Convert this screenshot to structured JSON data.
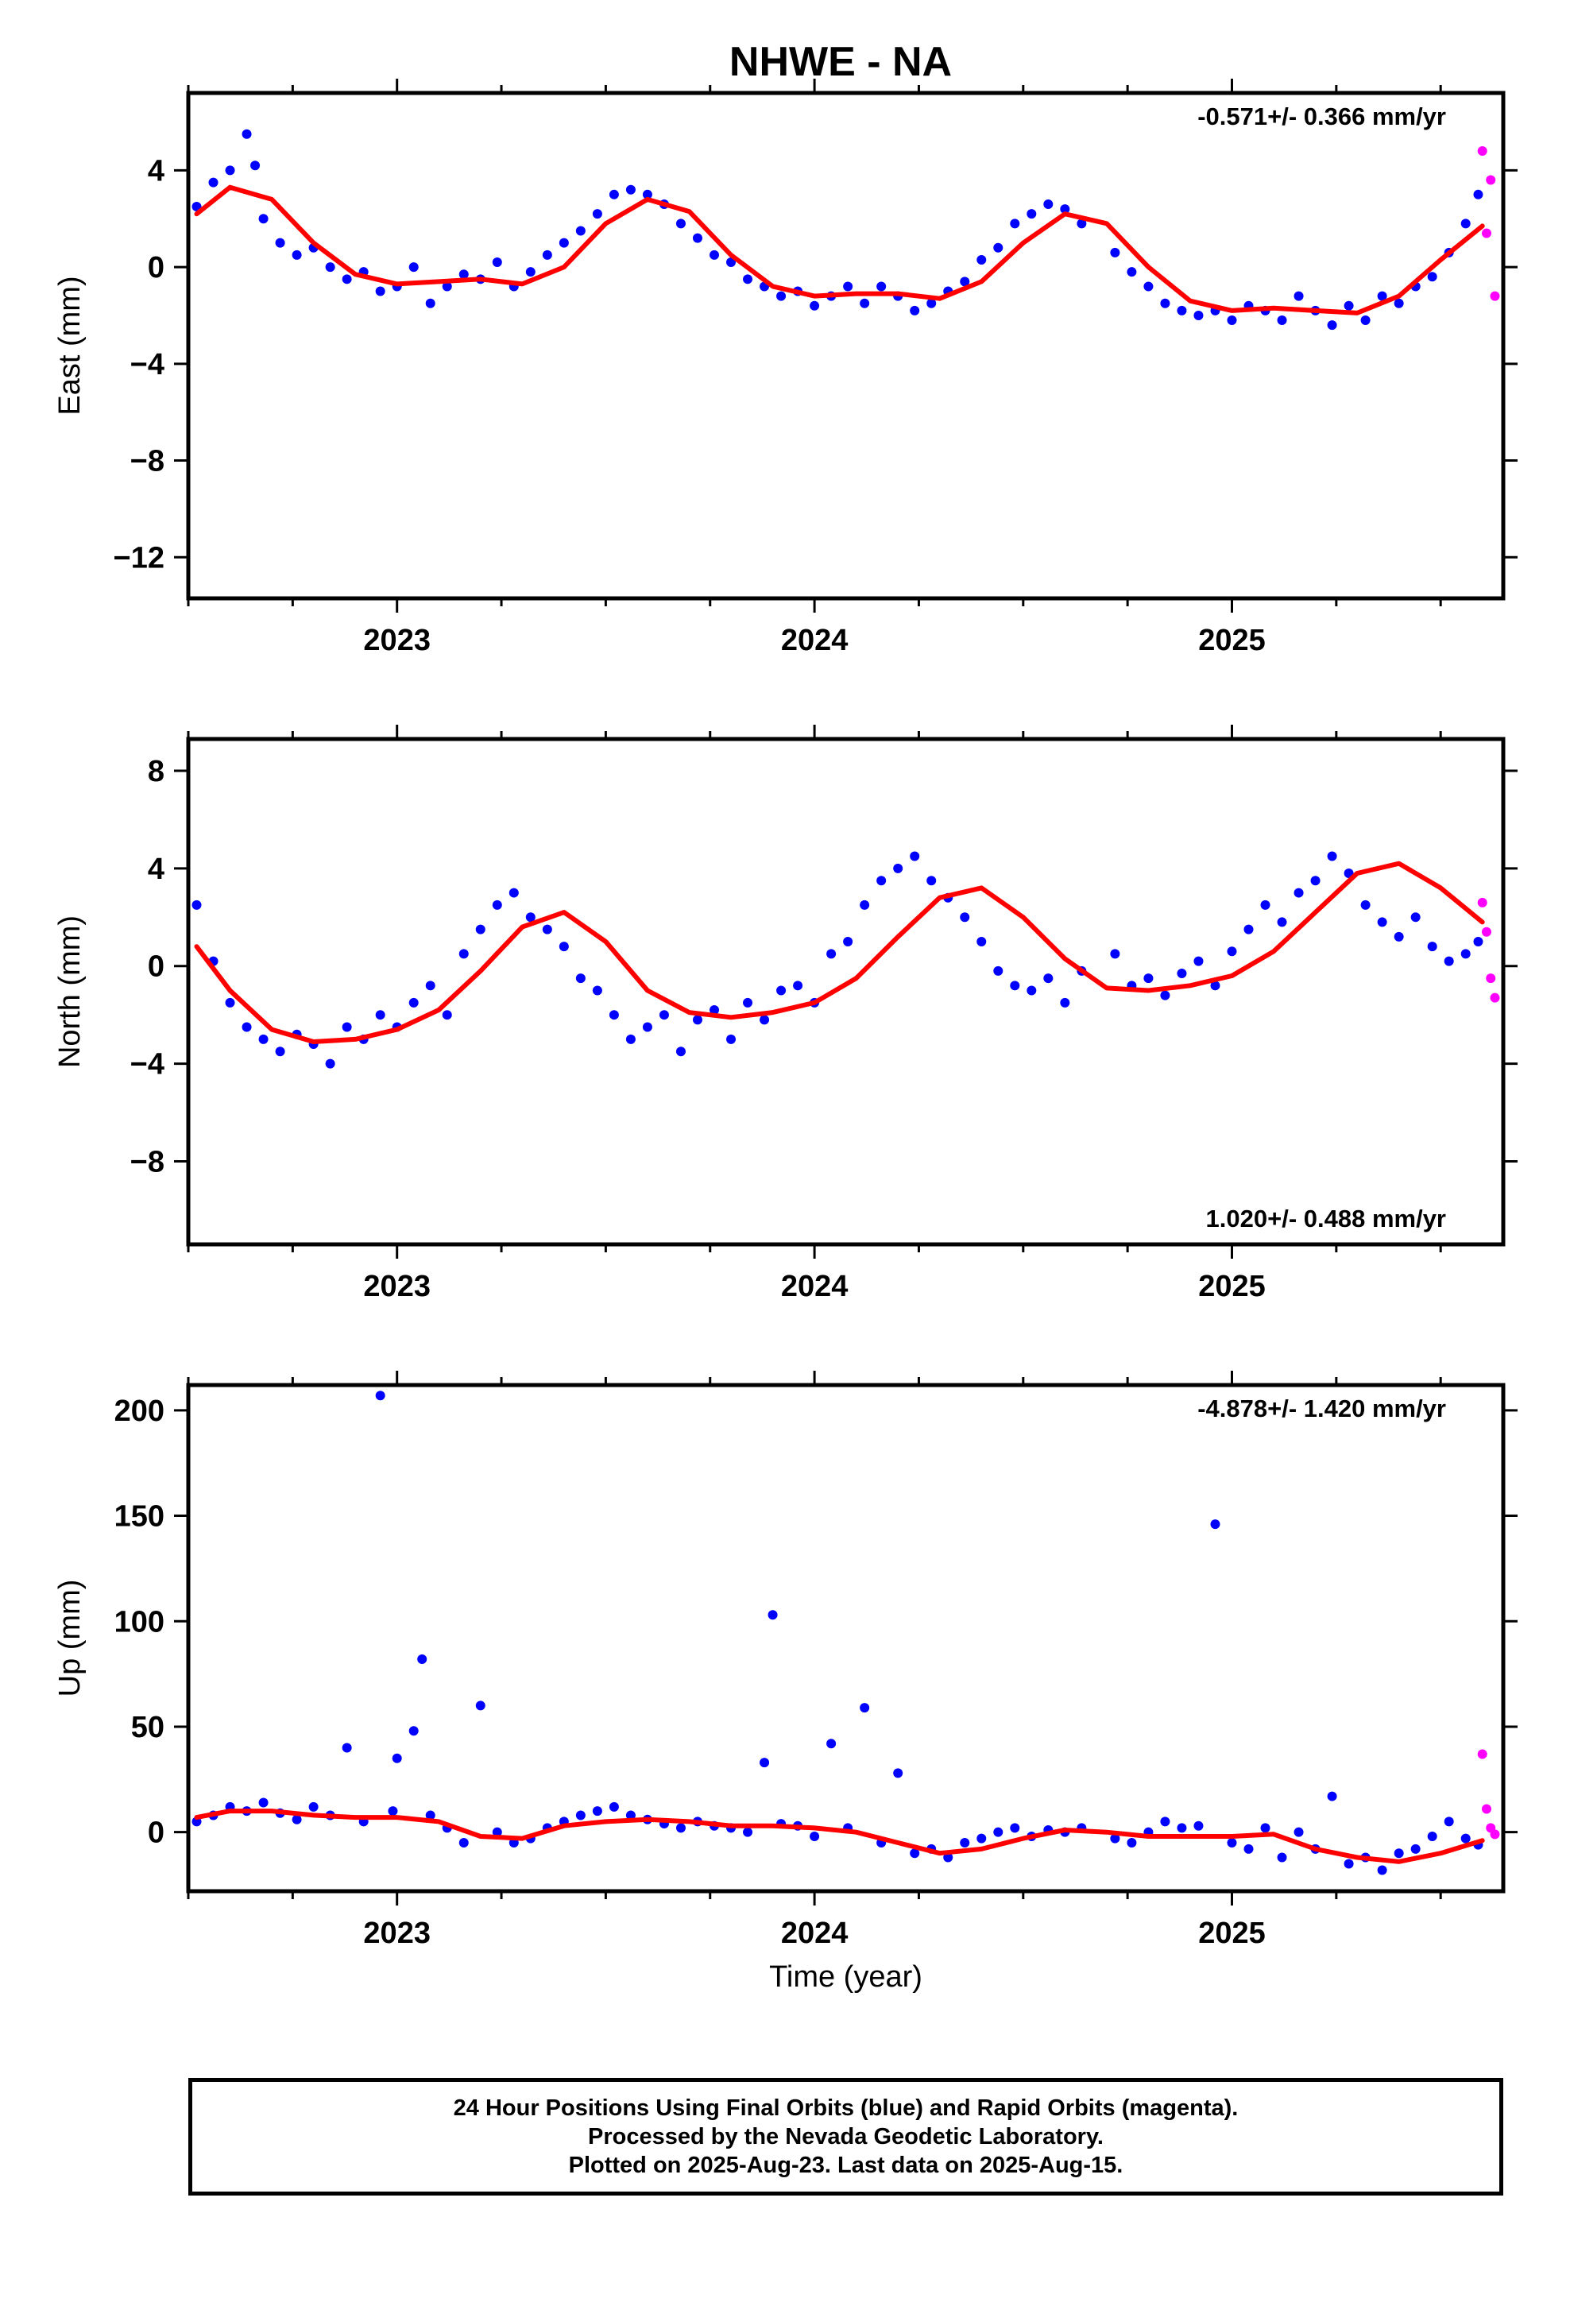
{
  "title": "NHWE - NA",
  "footer": {
    "line1": "24 Hour Positions Using Final Orbits (blue) and Rapid Orbits (magenta).",
    "line2": "Processed by the Nevada Geodetic Laboratory.",
    "line3": "Plotted on 2025-Aug-23. Last data on 2025-Aug-15."
  },
  "colors": {
    "final": "#0000ff",
    "rapid": "#ff00ff",
    "fit": "#ff0000",
    "axis": "#000000"
  },
  "chart_data": [
    {
      "type": "scatter",
      "title": "NHWE - NA",
      "xlabel": "",
      "ylabel": "East (mm)",
      "rate_label": "-0.571+/- 0.366 mm/yr",
      "rate_position": "top-right",
      "xlim": [
        2022.5,
        2025.65
      ],
      "ylim": [
        -13.7,
        7.2
      ],
      "x_ticks": [
        2023,
        2024,
        2025
      ],
      "y_ticks": [
        4,
        0,
        -4,
        -8,
        -12
      ],
      "grid": false,
      "series": [
        {
          "role": "final",
          "x": [
            2022.52,
            2022.56,
            2022.6,
            2022.64,
            2022.66,
            2022.68,
            2022.72,
            2022.76,
            2022.8,
            2022.84,
            2022.88,
            2022.92,
            2022.96,
            2023.0,
            2023.04,
            2023.08,
            2023.12,
            2023.16,
            2023.2,
            2023.24,
            2023.28,
            2023.32,
            2023.36,
            2023.4,
            2023.44,
            2023.48,
            2023.52,
            2023.56,
            2023.6,
            2023.64,
            2023.68,
            2023.72,
            2023.76,
            2023.8,
            2023.84,
            2023.88,
            2023.92,
            2023.96,
            2024.0,
            2024.04,
            2024.08,
            2024.12,
            2024.16,
            2024.2,
            2024.24,
            2024.28,
            2024.32,
            2024.36,
            2024.4,
            2024.44,
            2024.48,
            2024.52,
            2024.56,
            2024.6,
            2024.64,
            2024.72,
            2024.76,
            2024.8,
            2024.84,
            2024.88,
            2024.92,
            2024.96,
            2025.0,
            2025.04,
            2025.08,
            2025.12,
            2025.16,
            2025.2,
            2025.24,
            2025.28,
            2025.32,
            2025.36,
            2025.4,
            2025.44,
            2025.48,
            2025.52,
            2025.56,
            2025.59
          ],
          "y": [
            2.5,
            3.5,
            4.0,
            5.5,
            4.2,
            2.0,
            1.0,
            0.5,
            0.8,
            0.0,
            -0.5,
            -0.2,
            -1.0,
            -0.8,
            0.0,
            -1.5,
            -0.8,
            -0.3,
            -0.5,
            0.2,
            -0.8,
            -0.2,
            0.5,
            1.0,
            1.5,
            2.2,
            3.0,
            3.2,
            3.0,
            2.6,
            1.8,
            1.2,
            0.5,
            0.2,
            -0.5,
            -0.8,
            -1.2,
            -1.0,
            -1.6,
            -1.2,
            -0.8,
            -1.5,
            -0.8,
            -1.2,
            -1.8,
            -1.5,
            -1.0,
            -0.6,
            0.3,
            0.8,
            1.8,
            2.2,
            2.6,
            2.4,
            1.8,
            0.6,
            -0.2,
            -0.8,
            -1.5,
            -1.8,
            -2.0,
            -1.8,
            -2.2,
            -1.6,
            -1.8,
            -2.2,
            -1.2,
            -1.8,
            -2.4,
            -1.6,
            -2.2,
            -1.2,
            -1.5,
            -0.8,
            -0.4,
            0.6,
            1.8,
            3.0
          ]
        },
        {
          "role": "rapid",
          "x": [
            2025.6,
            2025.61,
            2025.62,
            2025.63
          ],
          "y": [
            4.8,
            1.4,
            3.6,
            -1.2
          ]
        },
        {
          "role": "fit",
          "x": [
            2022.52,
            2022.6,
            2022.7,
            2022.8,
            2022.9,
            2023.0,
            2023.1,
            2023.2,
            2023.3,
            2023.4,
            2023.5,
            2023.6,
            2023.7,
            2023.8,
            2023.9,
            2024.0,
            2024.1,
            2024.2,
            2024.3,
            2024.4,
            2024.5,
            2024.6,
            2024.7,
            2024.8,
            2024.9,
            2025.0,
            2025.1,
            2025.2,
            2025.3,
            2025.4,
            2025.5,
            2025.6
          ],
          "y": [
            2.2,
            3.3,
            2.8,
            1.0,
            -0.3,
            -0.7,
            -0.6,
            -0.5,
            -0.7,
            0.0,
            1.8,
            2.8,
            2.3,
            0.5,
            -0.8,
            -1.2,
            -1.1,
            -1.1,
            -1.3,
            -0.6,
            1.0,
            2.2,
            1.8,
            0.0,
            -1.4,
            -1.8,
            -1.7,
            -1.8,
            -1.9,
            -1.2,
            0.3,
            1.7
          ]
        }
      ]
    },
    {
      "type": "scatter",
      "xlabel": "",
      "ylabel": "North (mm)",
      "rate_label": "1.020+/- 0.488 mm/yr",
      "rate_position": "bottom-right",
      "xlim": [
        2022.5,
        2025.65
      ],
      "ylim": [
        -11.4,
        9.3
      ],
      "x_ticks": [
        2023,
        2024,
        2025
      ],
      "y_ticks": [
        8,
        4,
        0,
        -4,
        -8
      ],
      "grid": false,
      "series": [
        {
          "role": "final",
          "x": [
            2022.52,
            2022.56,
            2022.6,
            2022.64,
            2022.68,
            2022.72,
            2022.76,
            2022.8,
            2022.84,
            2022.88,
            2022.92,
            2022.96,
            2023.0,
            2023.04,
            2023.08,
            2023.12,
            2023.16,
            2023.2,
            2023.24,
            2023.28,
            2023.32,
            2023.36,
            2023.4,
            2023.44,
            2023.48,
            2023.52,
            2023.56,
            2023.6,
            2023.64,
            2023.68,
            2023.72,
            2023.76,
            2023.8,
            2023.84,
            2023.88,
            2023.92,
            2023.96,
            2024.0,
            2024.04,
            2024.08,
            2024.12,
            2024.16,
            2024.2,
            2024.24,
            2024.28,
            2024.32,
            2024.36,
            2024.4,
            2024.44,
            2024.48,
            2024.52,
            2024.56,
            2024.6,
            2024.64,
            2024.72,
            2024.76,
            2024.8,
            2024.84,
            2024.88,
            2024.92,
            2024.96,
            2025.0,
            2025.04,
            2025.08,
            2025.12,
            2025.16,
            2025.2,
            2025.24,
            2025.28,
            2025.32,
            2025.36,
            2025.4,
            2025.44,
            2025.48,
            2025.52,
            2025.56,
            2025.59
          ],
          "y": [
            2.5,
            0.2,
            -1.5,
            -2.5,
            -3.0,
            -3.5,
            -2.8,
            -3.2,
            -4.0,
            -2.5,
            -3.0,
            -2.0,
            -2.5,
            -1.5,
            -0.8,
            -2.0,
            0.5,
            1.5,
            2.5,
            3.0,
            2.0,
            1.5,
            0.8,
            -0.5,
            -1.0,
            -2.0,
            -3.0,
            -2.5,
            -2.0,
            -3.5,
            -2.2,
            -1.8,
            -3.0,
            -1.5,
            -2.2,
            -1.0,
            -0.8,
            -1.5,
            0.5,
            1.0,
            2.5,
            3.5,
            4.0,
            4.5,
            3.5,
            2.8,
            2.0,
            1.0,
            -0.2,
            -0.8,
            -1.0,
            -0.5,
            -1.5,
            -0.2,
            0.5,
            -0.8,
            -0.5,
            -1.2,
            -0.3,
            0.2,
            -0.8,
            0.6,
            1.5,
            2.5,
            1.8,
            3.0,
            3.5,
            4.5,
            3.8,
            2.5,
            1.8,
            1.2,
            2.0,
            0.8,
            0.2,
            0.5,
            1.0
          ]
        },
        {
          "role": "rapid",
          "x": [
            2025.6,
            2025.61,
            2025.62,
            2025.63
          ],
          "y": [
            2.6,
            1.4,
            -0.5,
            -1.3
          ]
        },
        {
          "role": "fit",
          "x": [
            2022.52,
            2022.6,
            2022.7,
            2022.8,
            2022.9,
            2023.0,
            2023.1,
            2023.2,
            2023.3,
            2023.4,
            2023.5,
            2023.6,
            2023.7,
            2023.8,
            2023.9,
            2024.0,
            2024.1,
            2024.2,
            2024.3,
            2024.4,
            2024.5,
            2024.6,
            2024.7,
            2024.8,
            2024.9,
            2025.0,
            2025.1,
            2025.2,
            2025.3,
            2025.4,
            2025.5,
            2025.6
          ],
          "y": [
            0.8,
            -1.0,
            -2.6,
            -3.1,
            -3.0,
            -2.6,
            -1.8,
            -0.2,
            1.6,
            2.2,
            1.0,
            -1.0,
            -1.9,
            -2.1,
            -1.9,
            -1.5,
            -0.5,
            1.2,
            2.8,
            3.2,
            2.0,
            0.3,
            -0.9,
            -1.0,
            -0.8,
            -0.4,
            0.6,
            2.2,
            3.8,
            4.2,
            3.2,
            1.8
          ]
        }
      ]
    },
    {
      "type": "scatter",
      "xlabel": "Time (year)",
      "ylabel": "Up (mm)",
      "rate_label": "-4.878+/- 1.420 mm/yr",
      "rate_position": "top-right",
      "xlim": [
        2022.5,
        2025.65
      ],
      "ylim": [
        -28,
        212
      ],
      "x_ticks": [
        2023,
        2024,
        2025
      ],
      "y_ticks": [
        200,
        150,
        100,
        50,
        0
      ],
      "grid": false,
      "series": [
        {
          "role": "final",
          "x": [
            2022.52,
            2022.56,
            2022.6,
            2022.64,
            2022.68,
            2022.72,
            2022.76,
            2022.8,
            2022.84,
            2022.88,
            2022.92,
            2022.96,
            2022.99,
            2023.0,
            2023.04,
            2023.06,
            2023.08,
            2023.12,
            2023.16,
            2023.2,
            2023.24,
            2023.28,
            2023.32,
            2023.36,
            2023.4,
            2023.44,
            2023.48,
            2023.52,
            2023.56,
            2023.6,
            2023.64,
            2023.68,
            2023.72,
            2023.76,
            2023.8,
            2023.84,
            2023.88,
            2023.9,
            2023.92,
            2023.96,
            2024.0,
            2024.04,
            2024.08,
            2024.12,
            2024.16,
            2024.2,
            2024.24,
            2024.28,
            2024.32,
            2024.36,
            2024.4,
            2024.44,
            2024.48,
            2024.52,
            2024.56,
            2024.6,
            2024.64,
            2024.72,
            2024.76,
            2024.8,
            2024.84,
            2024.88,
            2024.92,
            2024.96,
            2025.0,
            2025.04,
            2025.08,
            2025.12,
            2025.16,
            2025.2,
            2025.24,
            2025.28,
            2025.32,
            2025.36,
            2025.4,
            2025.44,
            2025.48,
            2025.52,
            2025.56,
            2025.59
          ],
          "y": [
            5,
            8,
            12,
            10,
            14,
            9,
            6,
            12,
            8,
            40,
            5,
            207,
            10,
            35,
            48,
            82,
            8,
            2,
            -5,
            60,
            0,
            -5,
            -3,
            2,
            5,
            8,
            10,
            12,
            8,
            6,
            4,
            2,
            5,
            3,
            2,
            0,
            33,
            103,
            4,
            3,
            -2,
            42,
            2,
            59,
            -5,
            28,
            -10,
            -8,
            -12,
            -5,
            -3,
            0,
            2,
            -2,
            1,
            0,
            2,
            -3,
            -5,
            0,
            5,
            2,
            3,
            146,
            -5,
            -8,
            2,
            -12,
            0,
            -8,
            17,
            -15,
            -12,
            -18,
            -10,
            -8,
            -2,
            5,
            -3,
            -6
          ]
        },
        {
          "role": "rapid",
          "x": [
            2025.6,
            2025.61,
            2025.62,
            2025.63
          ],
          "y": [
            37,
            11,
            2,
            -1
          ]
        },
        {
          "role": "fit",
          "x": [
            2022.52,
            2022.6,
            2022.7,
            2022.8,
            2022.9,
            2023.0,
            2023.1,
            2023.2,
            2023.3,
            2023.4,
            2023.5,
            2023.6,
            2023.7,
            2023.8,
            2023.9,
            2024.0,
            2024.1,
            2024.2,
            2024.3,
            2024.4,
            2024.5,
            2024.6,
            2024.7,
            2024.8,
            2024.9,
            2025.0,
            2025.1,
            2025.2,
            2025.3,
            2025.4,
            2025.5,
            2025.6
          ],
          "y": [
            7,
            10,
            10,
            8,
            7,
            7,
            5,
            -2,
            -3,
            3,
            5,
            6,
            5,
            3,
            3,
            2,
            0,
            -5,
            -10,
            -8,
            -3,
            1,
            0,
            -2,
            -2,
            -2,
            -1,
            -8,
            -12,
            -14,
            -10,
            -4
          ]
        }
      ]
    }
  ]
}
